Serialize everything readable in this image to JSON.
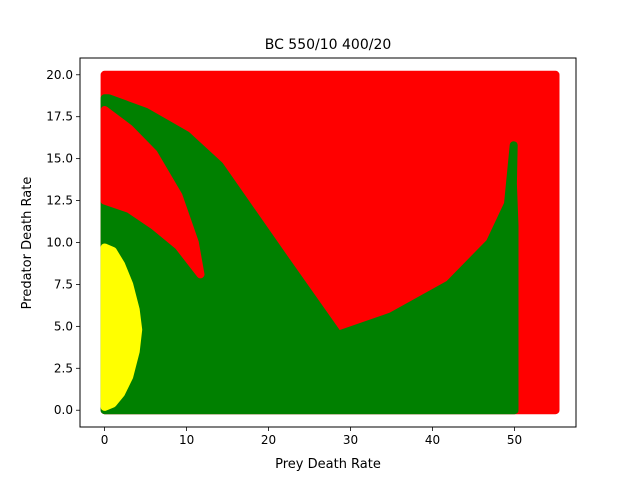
{
  "chart_data": {
    "type": "scatter",
    "title": "BC 550/10 400/20",
    "xlabel": "Prey Death Rate",
    "ylabel": "Predator Death Rate",
    "xlim": [
      -3.0,
      57.5
    ],
    "ylim": [
      -1.0,
      21.0
    ],
    "x_ticks": [
      "0",
      "10",
      "20",
      "30",
      "40",
      "50"
    ],
    "y_ticks": [
      "0.0",
      "2.5",
      "5.0",
      "7.5",
      "10.0",
      "12.5",
      "15.0",
      "17.5",
      "20.0"
    ],
    "grid": false,
    "legend": "none",
    "colors": {
      "red": "#ff0000",
      "green": "#008000",
      "yellow": "#ffff00"
    },
    "regions": [
      {
        "color": "#ff0000",
        "polygon": [
          [
            0,
            0
          ],
          [
            55,
            0
          ],
          [
            55,
            20
          ],
          [
            0,
            20
          ]
        ]
      },
      {
        "color": "#008000",
        "polygon": [
          [
            0,
            0
          ],
          [
            50.0,
            0
          ],
          [
            50.0,
            11.0
          ],
          [
            49.8,
            13.5
          ],
          [
            49.9,
            15.8
          ],
          [
            49.2,
            12.3
          ],
          [
            47.0,
            10.0
          ],
          [
            42.0,
            7.5
          ],
          [
            35.0,
            5.6
          ],
          [
            28.5,
            4.5
          ],
          [
            22.0,
            9.0
          ],
          [
            17.0,
            12.5
          ],
          [
            14.0,
            14.6
          ],
          [
            10.0,
            16.4
          ],
          [
            5.0,
            17.8
          ],
          [
            0.5,
            18.6
          ],
          [
            0,
            18.6
          ]
        ]
      },
      {
        "color": "#ff0000",
        "polygon": [
          [
            0,
            12.5
          ],
          [
            3.0,
            12.0
          ],
          [
            6.0,
            11.0
          ],
          [
            9.0,
            9.8
          ],
          [
            11.7,
            8.1
          ],
          [
            11.0,
            10.0
          ],
          [
            9.0,
            12.8
          ],
          [
            6.0,
            15.3
          ],
          [
            3.0,
            16.8
          ],
          [
            0,
            17.9
          ]
        ]
      },
      {
        "color": "#ffff00",
        "polygon": [
          [
            0,
            0.2
          ],
          [
            1.0,
            0.4
          ],
          [
            2.0,
            1.0
          ],
          [
            3.0,
            2.0
          ],
          [
            3.8,
            3.5
          ],
          [
            4.1,
            4.8
          ],
          [
            3.8,
            6.0
          ],
          [
            3.0,
            7.5
          ],
          [
            2.0,
            8.7
          ],
          [
            1.0,
            9.5
          ],
          [
            0,
            9.7
          ]
        ]
      }
    ]
  }
}
